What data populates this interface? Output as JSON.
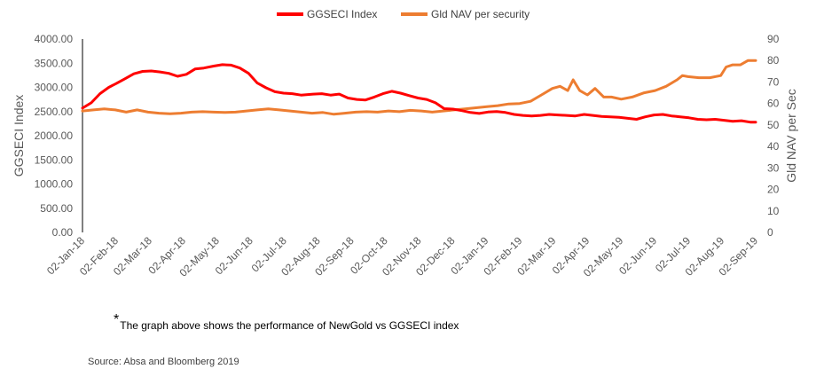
{
  "chart_data": {
    "type": "line",
    "legend_position": "top",
    "grid": false,
    "x_tick_labels": [
      "02-Jan-18",
      "02-Feb-18",
      "02-Mar-18",
      "02-Apr-18",
      "02-May-18",
      "02-Jun-18",
      "02-Jul-18",
      "02-Aug-18",
      "02-Sep-18",
      "02-Oct-18",
      "02-Nov-18",
      "02-Dec-18",
      "02-Jan-19",
      "02-Feb-19",
      "02-Mar-19",
      "02-Apr-19",
      "02-May-19",
      "02-Jun-19",
      "02-Jul-19",
      "02-Aug-19",
      "02-Sep-19"
    ],
    "x_range": [
      "2018-01-02",
      "2019-09-10"
    ],
    "y_left": {
      "label": "GGSECI Index",
      "range": [
        0,
        4000
      ],
      "tick_labels": [
        "0.00",
        "500.00",
        "1000.00",
        "1500.00",
        "2000.00",
        "2500.00",
        "3000.00",
        "3500.00",
        "4000.00"
      ]
    },
    "y_right": {
      "label": "Gld NAV per Sec",
      "range": [
        0,
        90
      ],
      "tick_labels": [
        "0",
        "10",
        "20",
        "30",
        "40",
        "50",
        "60",
        "70",
        "80",
        "90"
      ]
    },
    "series": [
      {
        "name": "GGSECI Index",
        "axis": "left",
        "color": "#ff0000",
        "points": [
          [
            "2018-01-02",
            2570
          ],
          [
            "2018-01-10",
            2680
          ],
          [
            "2018-01-18",
            2870
          ],
          [
            "2018-01-26",
            3000
          ],
          [
            "2018-02-02",
            3080
          ],
          [
            "2018-02-10",
            3180
          ],
          [
            "2018-02-18",
            3280
          ],
          [
            "2018-02-26",
            3330
          ],
          [
            "2018-03-06",
            3340
          ],
          [
            "2018-03-14",
            3320
          ],
          [
            "2018-03-22",
            3290
          ],
          [
            "2018-03-30",
            3230
          ],
          [
            "2018-04-07",
            3270
          ],
          [
            "2018-04-15",
            3380
          ],
          [
            "2018-04-23",
            3400
          ],
          [
            "2018-05-02",
            3440
          ],
          [
            "2018-05-10",
            3470
          ],
          [
            "2018-05-18",
            3460
          ],
          [
            "2018-05-26",
            3400
          ],
          [
            "2018-06-03",
            3290
          ],
          [
            "2018-06-11",
            3090
          ],
          [
            "2018-06-19",
            2990
          ],
          [
            "2018-06-27",
            2910
          ],
          [
            "2018-07-05",
            2880
          ],
          [
            "2018-07-13",
            2870
          ],
          [
            "2018-07-21",
            2840
          ],
          [
            "2018-08-01",
            2860
          ],
          [
            "2018-08-09",
            2870
          ],
          [
            "2018-08-17",
            2840
          ],
          [
            "2018-08-25",
            2860
          ],
          [
            "2018-09-02",
            2780
          ],
          [
            "2018-09-10",
            2750
          ],
          [
            "2018-09-18",
            2740
          ],
          [
            "2018-09-26",
            2800
          ],
          [
            "2018-10-04",
            2870
          ],
          [
            "2018-10-12",
            2920
          ],
          [
            "2018-10-20",
            2880
          ],
          [
            "2018-10-28",
            2830
          ],
          [
            "2018-11-05",
            2780
          ],
          [
            "2018-11-13",
            2750
          ],
          [
            "2018-11-21",
            2680
          ],
          [
            "2018-11-29",
            2560
          ],
          [
            "2018-12-07",
            2550
          ],
          [
            "2018-12-15",
            2520
          ],
          [
            "2018-12-23",
            2480
          ],
          [
            "2018-12-31",
            2460
          ],
          [
            "2019-01-08",
            2490
          ],
          [
            "2019-01-16",
            2500
          ],
          [
            "2019-01-24",
            2480
          ],
          [
            "2019-02-01",
            2440
          ],
          [
            "2019-02-09",
            2420
          ],
          [
            "2019-02-17",
            2410
          ],
          [
            "2019-02-25",
            2420
          ],
          [
            "2019-03-05",
            2440
          ],
          [
            "2019-03-13",
            2430
          ],
          [
            "2019-03-21",
            2420
          ],
          [
            "2019-03-29",
            2410
          ],
          [
            "2019-04-06",
            2440
          ],
          [
            "2019-04-14",
            2420
          ],
          [
            "2019-04-22",
            2400
          ],
          [
            "2019-04-30",
            2390
          ],
          [
            "2019-05-08",
            2380
          ],
          [
            "2019-05-16",
            2360
          ],
          [
            "2019-05-24",
            2340
          ],
          [
            "2019-06-01",
            2390
          ],
          [
            "2019-06-09",
            2430
          ],
          [
            "2019-06-17",
            2440
          ],
          [
            "2019-06-25",
            2410
          ],
          [
            "2019-07-03",
            2390
          ],
          [
            "2019-07-11",
            2370
          ],
          [
            "2019-07-19",
            2340
          ],
          [
            "2019-07-27",
            2330
          ],
          [
            "2019-08-04",
            2340
          ],
          [
            "2019-08-12",
            2320
          ],
          [
            "2019-08-20",
            2300
          ],
          [
            "2019-08-28",
            2310
          ],
          [
            "2019-09-05",
            2280
          ],
          [
            "2019-09-10",
            2280
          ]
        ]
      },
      {
        "name": "Gld NAV per security",
        "axis": "right",
        "color": "#ed7d31",
        "points": [
          [
            "2018-01-02",
            56.5
          ],
          [
            "2018-01-12",
            57
          ],
          [
            "2018-01-22",
            57.5
          ],
          [
            "2018-02-01",
            57
          ],
          [
            "2018-02-11",
            56
          ],
          [
            "2018-02-21",
            57
          ],
          [
            "2018-03-03",
            56
          ],
          [
            "2018-03-13",
            55.5
          ],
          [
            "2018-03-23",
            55.2
          ],
          [
            "2018-04-02",
            55.5
          ],
          [
            "2018-04-12",
            56
          ],
          [
            "2018-04-22",
            56.2
          ],
          [
            "2018-05-02",
            56
          ],
          [
            "2018-05-12",
            55.8
          ],
          [
            "2018-05-22",
            56
          ],
          [
            "2018-06-01",
            56.5
          ],
          [
            "2018-06-11",
            57
          ],
          [
            "2018-06-21",
            57.5
          ],
          [
            "2018-07-01",
            57
          ],
          [
            "2018-07-11",
            56.5
          ],
          [
            "2018-07-21",
            56
          ],
          [
            "2018-07-31",
            55.5
          ],
          [
            "2018-08-10",
            55.8
          ],
          [
            "2018-08-20",
            55
          ],
          [
            "2018-08-30",
            55.5
          ],
          [
            "2018-09-09",
            56
          ],
          [
            "2018-09-19",
            56.2
          ],
          [
            "2018-09-29",
            56
          ],
          [
            "2018-10-09",
            56.5
          ],
          [
            "2018-10-19",
            56.2
          ],
          [
            "2018-10-29",
            56.8
          ],
          [
            "2018-11-08",
            56.5
          ],
          [
            "2018-11-18",
            56
          ],
          [
            "2018-11-28",
            56.5
          ],
          [
            "2018-12-08",
            57
          ],
          [
            "2018-12-18",
            57.5
          ],
          [
            "2018-12-28",
            58
          ],
          [
            "2019-01-07",
            58.5
          ],
          [
            "2019-01-17",
            59
          ],
          [
            "2019-01-27",
            59.8
          ],
          [
            "2019-02-06",
            60
          ],
          [
            "2019-02-16",
            61
          ],
          [
            "2019-02-26",
            64
          ],
          [
            "2019-03-08",
            67
          ],
          [
            "2019-03-15",
            68
          ],
          [
            "2019-03-22",
            66
          ],
          [
            "2019-03-27",
            71
          ],
          [
            "2019-04-02",
            66
          ],
          [
            "2019-04-09",
            64
          ],
          [
            "2019-04-16",
            67
          ],
          [
            "2019-04-24",
            63
          ],
          [
            "2019-05-01",
            63
          ],
          [
            "2019-05-10",
            62
          ],
          [
            "2019-05-20",
            63
          ],
          [
            "2019-05-31",
            65
          ],
          [
            "2019-06-10",
            66
          ],
          [
            "2019-06-20",
            68
          ],
          [
            "2019-06-30",
            71
          ],
          [
            "2019-07-05",
            73
          ],
          [
            "2019-07-10",
            72.5
          ],
          [
            "2019-07-20",
            72
          ],
          [
            "2019-07-30",
            72
          ],
          [
            "2019-08-09",
            73
          ],
          [
            "2019-08-14",
            77
          ],
          [
            "2019-08-20",
            78
          ],
          [
            "2019-08-27",
            78
          ],
          [
            "2019-09-03",
            80
          ],
          [
            "2019-09-10",
            80
          ]
        ]
      }
    ]
  },
  "footnote": {
    "star": "*",
    "text": "The graph above shows the performance of NewGold vs GGSECI index"
  },
  "source": "Source: Absa and Bloomberg  2019"
}
